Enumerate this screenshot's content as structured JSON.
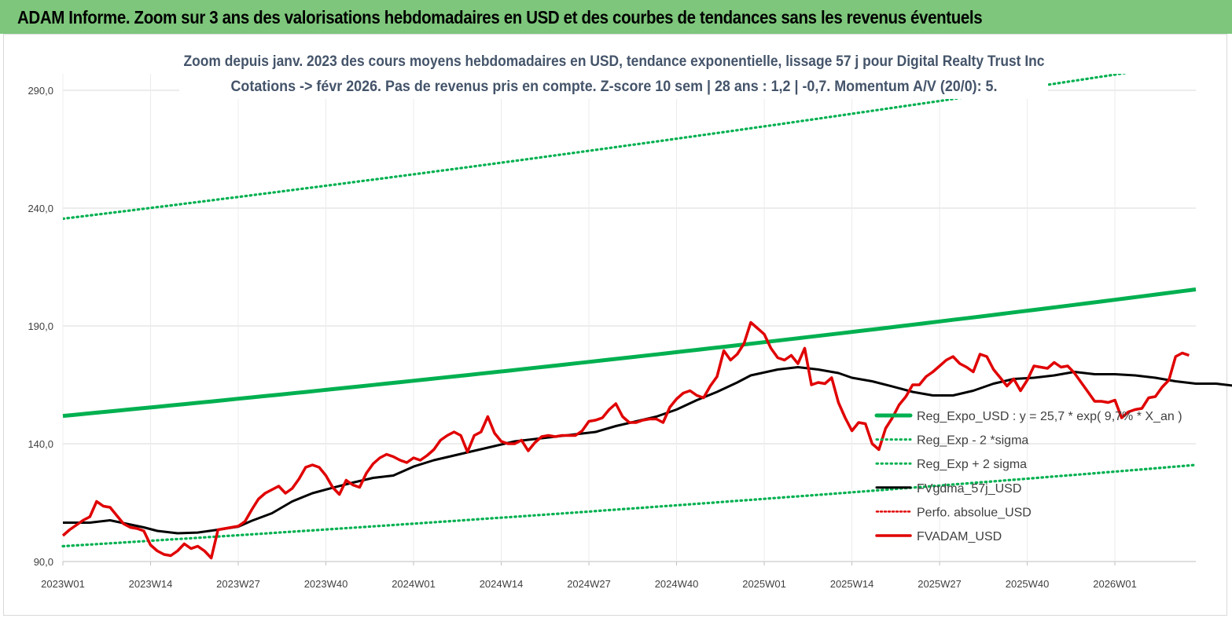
{
  "header": {
    "title": "ADAM Informe. Zoom sur 3 ans des valorisations hebdomadaires en USD et des courbes de tendances sans les revenus éventuels"
  },
  "chart_data": {
    "type": "line",
    "subtitle_line1": "Zoom depuis janv. 2023 des cours moyens hebdomadaires en USD, tendance exponentielle, lissage 57 j pour Digital Realty Trust Inc",
    "subtitle_line2": "Cotations -> févr 2026. Pas de revenus pris en compte. Z-score 10 sem  | 28 ans : 1,2 | -0,7. Momentum A/V (20/0): 5.",
    "ylim": [
      90,
      297
    ],
    "y_ticks": [
      "90,0",
      "140,0",
      "190,0",
      "240,0",
      "290,0"
    ],
    "y_tick_values": [
      90,
      140,
      190,
      240,
      290
    ],
    "x_ticks": [
      "2023W01",
      "2023W14",
      "2023W27",
      "2023W40",
      "2024W01",
      "2024W14",
      "2024W27",
      "2024W40",
      "2025W01",
      "2025W14",
      "2025W27",
      "2025W40",
      "2026W01"
    ],
    "x_tick_index": [
      0,
      13,
      26,
      39,
      52,
      65,
      78,
      91,
      104,
      117,
      130,
      143,
      156
    ],
    "n_weeks": 168,
    "grid": "horizontal",
    "legend_position": "bottom-right",
    "colors": {
      "reg_expo": "#00b050",
      "sigma": "#00b050",
      "fvgdma": "#000000",
      "perfo": "#e00000",
      "fvadam": "#e00000",
      "grid": "#d9d9d9"
    },
    "series": [
      {
        "name": "Reg_Expo_USD : y = 25,7 * exp( 9,7% * X_an )",
        "style": "solid-thick",
        "start": 151.8,
        "end": 205.5
      },
      {
        "name": "Reg_Exp - 2 *sigma",
        "style": "dotted",
        "start": 96.5,
        "end": 131.0
      },
      {
        "name": "Reg_Exp + 2 sigma",
        "style": "dotted",
        "start": 235.5,
        "end": 302.0
      },
      {
        "name": "FVgdma_57j_USD",
        "style": "solid",
        "points": [
          [
            0,
            106.5
          ],
          [
            4,
            106.5
          ],
          [
            7,
            107.5
          ],
          [
            12,
            104.5
          ],
          [
            14,
            103.0
          ],
          [
            17,
            102.0
          ],
          [
            20,
            102.3
          ],
          [
            23,
            103.5
          ],
          [
            26,
            104.8
          ],
          [
            28,
            107.3
          ],
          [
            31,
            110.5
          ],
          [
            34,
            115.5
          ],
          [
            37,
            119.0
          ],
          [
            40,
            121.3
          ],
          [
            43,
            123.5
          ],
          [
            46,
            125.5
          ],
          [
            49,
            126.5
          ],
          [
            52,
            130.3
          ],
          [
            55,
            133.0
          ],
          [
            58,
            135.0
          ],
          [
            61,
            137.0
          ],
          [
            64,
            139.0
          ],
          [
            67,
            141.0
          ],
          [
            70,
            142.0
          ],
          [
            73,
            143.0
          ],
          [
            76,
            144.0
          ],
          [
            79,
            145.0
          ],
          [
            82,
            147.5
          ],
          [
            85,
            149.5
          ],
          [
            88,
            151.5
          ],
          [
            91,
            154.5
          ],
          [
            94,
            158.5
          ],
          [
            97,
            162.0
          ],
          [
            100,
            166.0
          ],
          [
            102,
            169.0
          ],
          [
            106,
            171.5
          ],
          [
            109,
            172.5
          ],
          [
            112,
            171.5
          ],
          [
            115,
            170.0
          ],
          [
            117,
            168.0
          ],
          [
            120,
            166.5
          ],
          [
            123,
            164.3
          ],
          [
            126,
            162.0
          ],
          [
            129,
            160.5
          ],
          [
            132,
            160.5
          ],
          [
            135,
            162.5
          ],
          [
            138,
            165.5
          ],
          [
            141,
            167.5
          ],
          [
            144,
            168.0
          ],
          [
            147,
            169.0
          ],
          [
            150,
            170.5
          ],
          [
            153,
            169.5
          ],
          [
            156,
            169.5
          ],
          [
            159,
            169.0
          ],
          [
            162,
            168.0
          ],
          [
            165,
            166.5
          ],
          [
            168,
            165.5
          ],
          [
            171,
            165.5
          ],
          [
            174,
            164.5
          ],
          [
            177,
            165.5
          ],
          [
            180,
            166.5
          ],
          [
            183,
            169.0
          ],
          [
            186,
            171.5
          ],
          [
            188,
            174.0
          ]
        ]
      },
      {
        "name": "Perfo. absolue_USD",
        "style": "dotted",
        "points": []
      },
      {
        "name": "FVADAM_USD",
        "style": "solid-thick",
        "points": [
          [
            0,
            101.0
          ],
          [
            1,
            103.5
          ],
          [
            2,
            105.5
          ],
          [
            3,
            107.5
          ],
          [
            4,
            109.0
          ],
          [
            5,
            115.5
          ],
          [
            6,
            113.5
          ],
          [
            7,
            113.0
          ],
          [
            8,
            109.5
          ],
          [
            9,
            106.0
          ],
          [
            10,
            104.5
          ],
          [
            11,
            104.0
          ],
          [
            12,
            103.0
          ],
          [
            13,
            97.0
          ],
          [
            14,
            94.5
          ],
          [
            15,
            93.0
          ],
          [
            16,
            92.5
          ],
          [
            17,
            94.5
          ],
          [
            18,
            97.5
          ],
          [
            19,
            95.5
          ],
          [
            20,
            96.5
          ],
          [
            21,
            94.5
          ],
          [
            22,
            91.5
          ],
          [
            23,
            103.5
          ],
          [
            24,
            104.0
          ],
          [
            25,
            104.5
          ],
          [
            26,
            105.0
          ],
          [
            27,
            107.0
          ],
          [
            28,
            112.0
          ],
          [
            29,
            116.5
          ],
          [
            30,
            119.0
          ],
          [
            31,
            120.5
          ],
          [
            32,
            122.0
          ],
          [
            33,
            119.0
          ],
          [
            34,
            121.0
          ],
          [
            35,
            125.0
          ],
          [
            36,
            130.0
          ],
          [
            37,
            131.0
          ],
          [
            38,
            130.0
          ],
          [
            39,
            126.5
          ],
          [
            40,
            121.5
          ],
          [
            41,
            118.5
          ],
          [
            42,
            124.5
          ],
          [
            43,
            122.5
          ],
          [
            44,
            121.5
          ],
          [
            45,
            127.5
          ],
          [
            46,
            131.5
          ],
          [
            47,
            134.0
          ],
          [
            48,
            135.5
          ],
          [
            49,
            134.5
          ],
          [
            50,
            133.0
          ],
          [
            51,
            132.0
          ],
          [
            52,
            134.0
          ],
          [
            53,
            133.0
          ],
          [
            54,
            135.0
          ],
          [
            55,
            137.5
          ],
          [
            56,
            141.5
          ],
          [
            57,
            143.5
          ],
          [
            58,
            145.0
          ],
          [
            59,
            143.5
          ],
          [
            60,
            136.5
          ],
          [
            61,
            143.5
          ],
          [
            62,
            145.0
          ],
          [
            63,
            151.5
          ],
          [
            64,
            144.5
          ],
          [
            65,
            141.0
          ],
          [
            66,
            140.0
          ],
          [
            67,
            140.0
          ],
          [
            68,
            141.5
          ],
          [
            69,
            137.0
          ],
          [
            70,
            140.5
          ],
          [
            71,
            143.0
          ],
          [
            72,
            143.5
          ],
          [
            73,
            143.0
          ],
          [
            74,
            143.5
          ],
          [
            75,
            143.5
          ],
          [
            76,
            143.5
          ],
          [
            77,
            145.5
          ],
          [
            78,
            149.5
          ],
          [
            79,
            150.0
          ],
          [
            80,
            151.0
          ],
          [
            81,
            154.5
          ],
          [
            82,
            157.0
          ],
          [
            83,
            151.5
          ],
          [
            84,
            149.0
          ],
          [
            85,
            149.0
          ],
          [
            86,
            150.0
          ],
          [
            87,
            150.5
          ],
          [
            88,
            150.5
          ],
          [
            89,
            149.0
          ],
          [
            90,
            155.5
          ],
          [
            91,
            159.0
          ],
          [
            92,
            161.5
          ],
          [
            93,
            162.5
          ],
          [
            94,
            160.5
          ],
          [
            95,
            159.5
          ],
          [
            96,
            164.5
          ],
          [
            97,
            168.5
          ],
          [
            98,
            179.5
          ],
          [
            99,
            175.5
          ],
          [
            100,
            178.0
          ],
          [
            101,
            182.5
          ],
          [
            102,
            191.5
          ],
          [
            103,
            189.0
          ],
          [
            104,
            186.5
          ],
          [
            105,
            180.5
          ],
          [
            106,
            176.5
          ],
          [
            107,
            175.5
          ],
          [
            108,
            177.5
          ],
          [
            109,
            174.0
          ],
          [
            110,
            180.5
          ],
          [
            111,
            165.0
          ],
          [
            112,
            166.0
          ],
          [
            113,
            165.5
          ],
          [
            114,
            168.0
          ],
          [
            115,
            157.5
          ],
          [
            116,
            151.0
          ],
          [
            117,
            145.5
          ],
          [
            118,
            149.0
          ],
          [
            119,
            148.5
          ],
          [
            120,
            140.0
          ],
          [
            121,
            137.5
          ],
          [
            122,
            146.5
          ],
          [
            123,
            151.0
          ],
          [
            124,
            156.5
          ],
          [
            125,
            160.0
          ],
          [
            126,
            165.0
          ],
          [
            127,
            165.0
          ],
          [
            128,
            168.5
          ],
          [
            129,
            170.5
          ],
          [
            130,
            173.0
          ],
          [
            131,
            175.5
          ],
          [
            132,
            177.0
          ],
          [
            133,
            174.0
          ],
          [
            134,
            172.5
          ],
          [
            135,
            170.5
          ],
          [
            136,
            178.0
          ],
          [
            137,
            177.0
          ],
          [
            138,
            171.5
          ],
          [
            139,
            168.0
          ],
          [
            140,
            164.5
          ],
          [
            141,
            167.5
          ],
          [
            142,
            162.5
          ],
          [
            143,
            167.0
          ],
          [
            144,
            173.0
          ],
          [
            145,
            172.5
          ],
          [
            146,
            172.0
          ],
          [
            147,
            174.5
          ],
          [
            148,
            172.5
          ],
          [
            149,
            173.0
          ],
          [
            150,
            170.0
          ],
          [
            151,
            166.0
          ],
          [
            152,
            162.0
          ],
          [
            153,
            158.0
          ],
          [
            154,
            158.0
          ],
          [
            155,
            157.5
          ],
          [
            156,
            158.5
          ],
          [
            157,
            151.0
          ],
          [
            158,
            153.5
          ],
          [
            159,
            154.5
          ],
          [
            160,
            155.0
          ],
          [
            161,
            159.5
          ],
          [
            162,
            160.0
          ],
          [
            163,
            164.0
          ],
          [
            164,
            167.0
          ],
          [
            165,
            177.0
          ],
          [
            166,
            178.5
          ],
          [
            167,
            177.5
          ]
        ]
      }
    ]
  }
}
